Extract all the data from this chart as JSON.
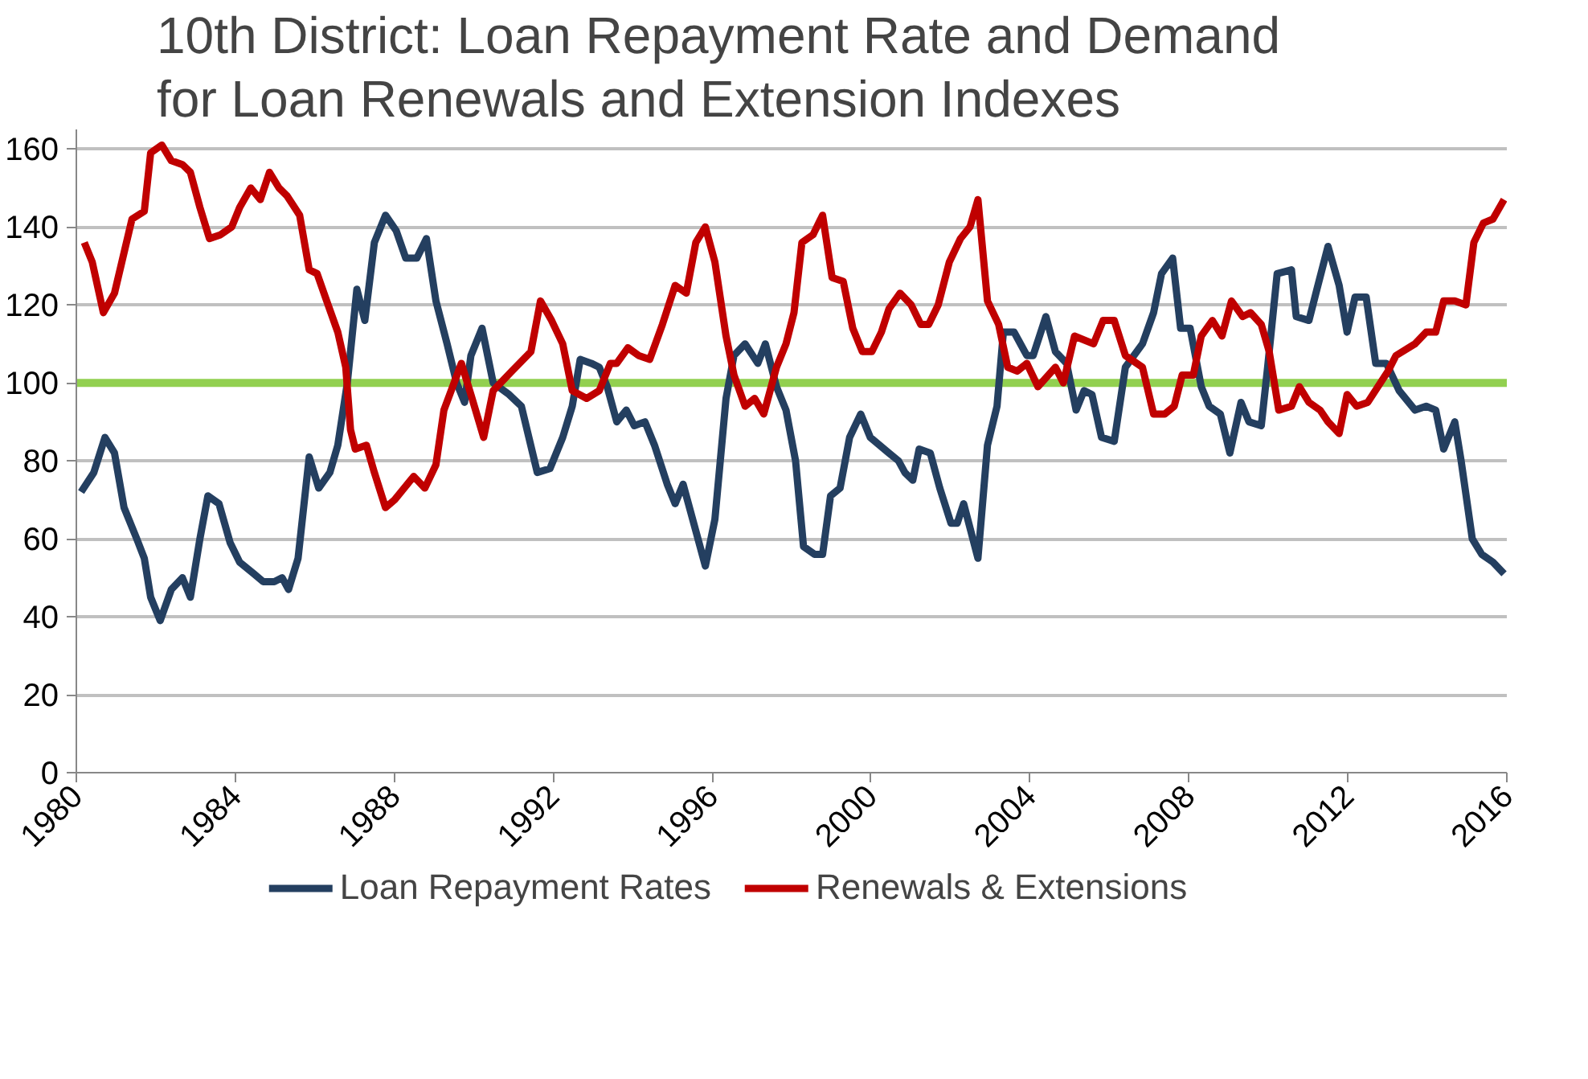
{
  "chart_data": {
    "type": "line",
    "title": "10th District: Loan Repayment Rate and Demand for Loan Renewals and Extension Indexes",
    "xlim": [
      1980,
      2016
    ],
    "xticks": [
      1980,
      1984,
      1988,
      1992,
      1996,
      2000,
      2004,
      2008,
      2012,
      2016
    ],
    "ylim": [
      0,
      165
    ],
    "yticks": [
      0,
      20,
      40,
      60,
      80,
      100,
      120,
      140,
      160
    ],
    "grid": "y",
    "legend": "bottom",
    "marker": "none",
    "line_style": "solid",
    "ref_lines": [
      {
        "axis": "y",
        "value": 100,
        "color": "#92d050"
      }
    ],
    "series": [
      {
        "name": "Loan Repayment Rates",
        "color": "#243f60",
        "x": [
          1980.12,
          1980.44,
          1980.72,
          1980.96,
          1981.2,
          1981.52,
          1981.71,
          1981.87,
          1982.11,
          1982.39,
          1982.67,
          1982.87,
          1983.11,
          1983.31,
          1983.59,
          1983.87,
          1984.11,
          1984.47,
          1984.7,
          1984.98,
          1985.18,
          1985.34,
          1985.58,
          1985.86,
          1986.1,
          1986.38,
          1986.58,
          1986.82,
          1987.06,
          1987.26,
          1987.5,
          1987.78,
          1988.05,
          1988.29,
          1988.57,
          1988.81,
          1989.05,
          1989.33,
          1989.57,
          1989.77,
          1989.93,
          1990.21,
          1990.49,
          1990.89,
          1991.2,
          1991.6,
          1991.92,
          1992.24,
          1992.48,
          1992.68,
          1992.96,
          1993.16,
          1993.36,
          1993.6,
          1993.84,
          1994.04,
          1994.31,
          1994.55,
          1994.87,
          1995.07,
          1995.27,
          1995.59,
          1995.83,
          1996.07,
          1996.35,
          1996.55,
          1996.83,
          1997.15,
          1997.34,
          1997.62,
          1997.86,
          1998.1,
          1998.3,
          1998.58,
          1998.78,
          1998.98,
          1999.22,
          1999.46,
          1999.74,
          1999.98,
          2000.45,
          2000.69,
          2000.85,
          2001.05,
          2001.21,
          2001.49,
          2001.73,
          2002.01,
          2002.17,
          2002.33,
          2002.69,
          2002.93,
          2003.17,
          2003.33,
          2003.6,
          2003.92,
          2004.08,
          2004.4,
          2004.64,
          2004.92,
          2005.16,
          2005.36,
          2005.56,
          2005.8,
          2006.12,
          2006.4,
          2006.83,
          2007.11,
          2007.31,
          2007.59,
          2007.79,
          2008.03,
          2008.31,
          2008.51,
          2008.79,
          2009.03,
          2009.31,
          2009.51,
          2009.82,
          2009.98,
          2010.22,
          2010.58,
          2010.7,
          2011.02,
          2011.22,
          2011.5,
          2011.78,
          2011.98,
          2012.18,
          2012.46,
          2012.7,
          2012.97,
          2013.29,
          2013.69,
          2013.97,
          2014.21,
          2014.41,
          2014.69,
          2014.85,
          2015.13,
          2015.37,
          2015.65,
          2015.93
        ],
        "values": [
          72,
          77,
          86,
          82,
          68,
          60,
          55,
          45,
          39,
          47,
          50,
          45,
          60,
          71,
          69,
          59,
          54,
          51,
          49,
          49,
          50,
          47,
          55,
          81,
          73,
          77,
          84,
          100,
          124,
          116,
          136,
          143,
          139,
          132,
          132,
          137,
          121,
          110,
          100,
          95,
          107,
          114,
          100,
          97,
          94,
          77,
          78,
          86,
          94,
          106,
          105,
          104,
          99,
          90,
          93,
          89,
          90,
          84,
          74,
          69,
          74,
          62,
          53,
          65,
          96,
          107,
          110,
          105,
          110,
          99,
          93,
          80,
          58,
          56,
          56,
          71,
          73,
          86,
          92,
          86,
          82,
          80,
          77,
          75,
          83,
          82,
          73,
          64,
          64,
          69,
          55,
          84,
          94,
          113,
          113,
          107,
          107,
          117,
          108,
          105,
          93,
          98,
          97,
          86,
          85,
          104,
          110,
          118,
          128,
          132,
          114,
          114,
          99,
          94,
          92,
          82,
          95,
          90,
          89,
          104,
          128,
          129,
          117,
          116,
          124,
          135,
          125,
          113,
          122,
          122,
          105,
          105,
          98,
          93,
          94,
          93,
          83,
          90,
          80,
          60,
          56,
          54,
          51
        ]
      },
      {
        "name": "Renewals & Extensions",
        "color": "#c00000",
        "x": [
          1980.2,
          1980.4,
          1980.68,
          1980.96,
          1981.4,
          1981.71,
          1981.87,
          1982.15,
          1982.39,
          1982.67,
          1982.87,
          1983.11,
          1983.35,
          1983.63,
          1983.91,
          1984.11,
          1984.39,
          1984.63,
          1984.86,
          1985.1,
          1985.3,
          1985.62,
          1985.86,
          1986.06,
          1986.3,
          1986.58,
          1986.78,
          1986.9,
          1987.02,
          1987.3,
          1987.5,
          1987.78,
          1988.01,
          1988.49,
          1988.77,
          1989.05,
          1989.25,
          1989.69,
          1989.93,
          1990.25,
          1990.49,
          1990.96,
          1991.44,
          1991.68,
          1991.96,
          1992.24,
          1992.48,
          1992.84,
          1993.16,
          1993.44,
          1993.6,
          1993.88,
          1994.15,
          1994.43,
          1994.75,
          1995.07,
          1995.35,
          1995.59,
          1995.83,
          1996.07,
          1996.35,
          1996.55,
          1996.83,
          1997.07,
          1997.3,
          1997.62,
          1997.86,
          1998.06,
          1998.26,
          1998.54,
          1998.78,
          1999.02,
          1999.3,
          1999.54,
          1999.78,
          2000.02,
          2000.26,
          2000.45,
          2000.73,
          2001.01,
          2001.25,
          2001.45,
          2001.69,
          2001.97,
          2002.25,
          2002.49,
          2002.69,
          2002.93,
          2003.21,
          2003.44,
          2003.68,
          2003.92,
          2004.2,
          2004.64,
          2004.84,
          2005.12,
          2005.6,
          2005.84,
          2006.12,
          2006.4,
          2006.83,
          2007.11,
          2007.39,
          2007.63,
          2007.83,
          2008.11,
          2008.31,
          2008.59,
          2008.83,
          2009.07,
          2009.35,
          2009.55,
          2009.82,
          2010.02,
          2010.26,
          2010.58,
          2010.78,
          2011.02,
          2011.3,
          2011.5,
          2011.78,
          2011.98,
          2012.22,
          2012.5,
          2013.01,
          2013.21,
          2013.69,
          2013.97,
          2014.21,
          2014.41,
          2014.69,
          2014.97,
          2015.17,
          2015.41,
          2015.65,
          2015.93
        ],
        "values": [
          136,
          131,
          118,
          123,
          142,
          144,
          159,
          161,
          157,
          156,
          154,
          145,
          137,
          138,
          140,
          145,
          150,
          147,
          154,
          150,
          148,
          143,
          129,
          128,
          121,
          113,
          104,
          88,
          83,
          84,
          77,
          68,
          70,
          76,
          73,
          79,
          93,
          105,
          97,
          86,
          98,
          103,
          108,
          121,
          116,
          110,
          98,
          96,
          98,
          105,
          105,
          109,
          107,
          106,
          115,
          125,
          123,
          136,
          140,
          131,
          112,
          102,
          94,
          96,
          92,
          104,
          110,
          118,
          136,
          138,
          143,
          127,
          126,
          114,
          108,
          108,
          113,
          119,
          123,
          120,
          115,
          115,
          120,
          131,
          137,
          140,
          147,
          121,
          115,
          104,
          103,
          105,
          99,
          104,
          100,
          112,
          110,
          116,
          116,
          107,
          104,
          92,
          92,
          94,
          102,
          102,
          112,
          116,
          112,
          121,
          117,
          118,
          115,
          108,
          93,
          94,
          99,
          95,
          93,
          90,
          87,
          97,
          94,
          95,
          103,
          107,
          110,
          113,
          113,
          121,
          121,
          120,
          136,
          141,
          142,
          147
        ]
      }
    ]
  }
}
